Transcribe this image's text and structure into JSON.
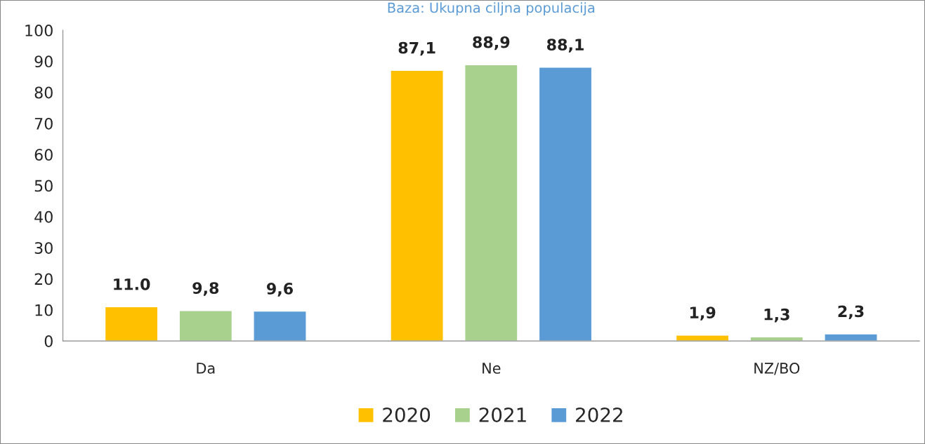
{
  "chart_data": {
    "type": "bar",
    "title": "Baza: Ukupna ciljna populacija",
    "categories": [
      "Da",
      "Ne",
      "NZ/BO"
    ],
    "series": [
      {
        "name": "2020",
        "color": "#ffc000",
        "values": [
          11.0,
          87.1,
          1.9
        ],
        "value_labels": [
          "11.0",
          "87,1",
          "1,9"
        ]
      },
      {
        "name": "2021",
        "color": "#a9d18e",
        "values": [
          9.8,
          88.9,
          1.3
        ],
        "value_labels": [
          "9,8",
          "88,9",
          "1,3"
        ]
      },
      {
        "name": "2022",
        "color": "#5b9bd5",
        "values": [
          9.6,
          88.1,
          2.3
        ],
        "value_labels": [
          "9,6",
          "88,1",
          "2,3"
        ]
      }
    ],
    "ylim": [
      0,
      100
    ],
    "yticks": [
      0,
      10,
      20,
      30,
      40,
      50,
      60,
      70,
      80,
      90,
      100
    ],
    "grid": false,
    "legend": "bottom"
  }
}
